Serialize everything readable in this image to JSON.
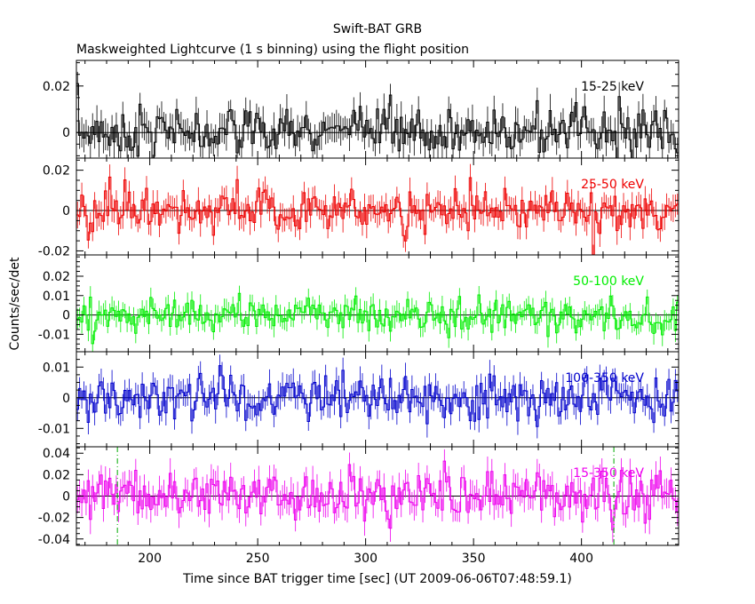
{
  "figure": {
    "title": "Swift-BAT GRB",
    "subtitle": "Maskweighted Lightcurve (1 s binning) using the flight position",
    "xlabel": "Time since BAT trigger time [sec] (UT 2009-06-06T07:48:59.1)",
    "ylabel": "Counts/sec/det"
  },
  "chart_data": {
    "type": "line",
    "style": "step with error bars",
    "xlim": [
      166,
      445
    ],
    "x_ticks": [
      200,
      250,
      300,
      350,
      400
    ],
    "bin_width_sec": 1,
    "vertical_markers": {
      "x": [
        185,
        415
      ],
      "color": "#00aa00",
      "style": "dash-dot",
      "panel": "15-350 keV"
    },
    "panels": [
      {
        "name": "15-25 keV",
        "color": "#000000",
        "ylim": [
          -0.011,
          0.031
        ],
        "y_ticks": [
          0,
          0.02
        ],
        "y_tick_labels": [
          "0",
          "0.02"
        ],
        "noise_sigma": 0.006
      },
      {
        "name": "25-50 keV",
        "color": "#ee0000",
        "ylim": [
          -0.022,
          0.026
        ],
        "y_ticks": [
          -0.02,
          0,
          0.02
        ],
        "y_tick_labels": [
          "-0.02",
          "0",
          "0.02"
        ],
        "noise_sigma": 0.006
      },
      {
        "name": "50-100 keV",
        "color": "#00ee00",
        "ylim": [
          -0.019,
          0.031
        ],
        "y_ticks": [
          -0.01,
          0,
          0.01,
          0.02
        ],
        "y_tick_labels": [
          "-0.01",
          "0",
          "0.01",
          "0.02"
        ],
        "noise_sigma": 0.005
      },
      {
        "name": "100-350 keV",
        "color": "#0000cc",
        "ylim": [
          -0.016,
          0.015
        ],
        "y_ticks": [
          -0.01,
          0,
          0.01
        ],
        "y_tick_labels": [
          "-0.01",
          "0",
          "0.01"
        ],
        "noise_sigma": 0.004
      },
      {
        "name": "15-350 keV",
        "color": "#ee00ee",
        "ylim": [
          -0.046,
          0.046
        ],
        "y_ticks": [
          -0.04,
          -0.02,
          0,
          0.02,
          0.04
        ],
        "y_tick_labels": [
          "-0.04",
          "-0.02",
          "0",
          "0.02",
          "0.04"
        ],
        "noise_sigma": 0.012
      }
    ]
  }
}
